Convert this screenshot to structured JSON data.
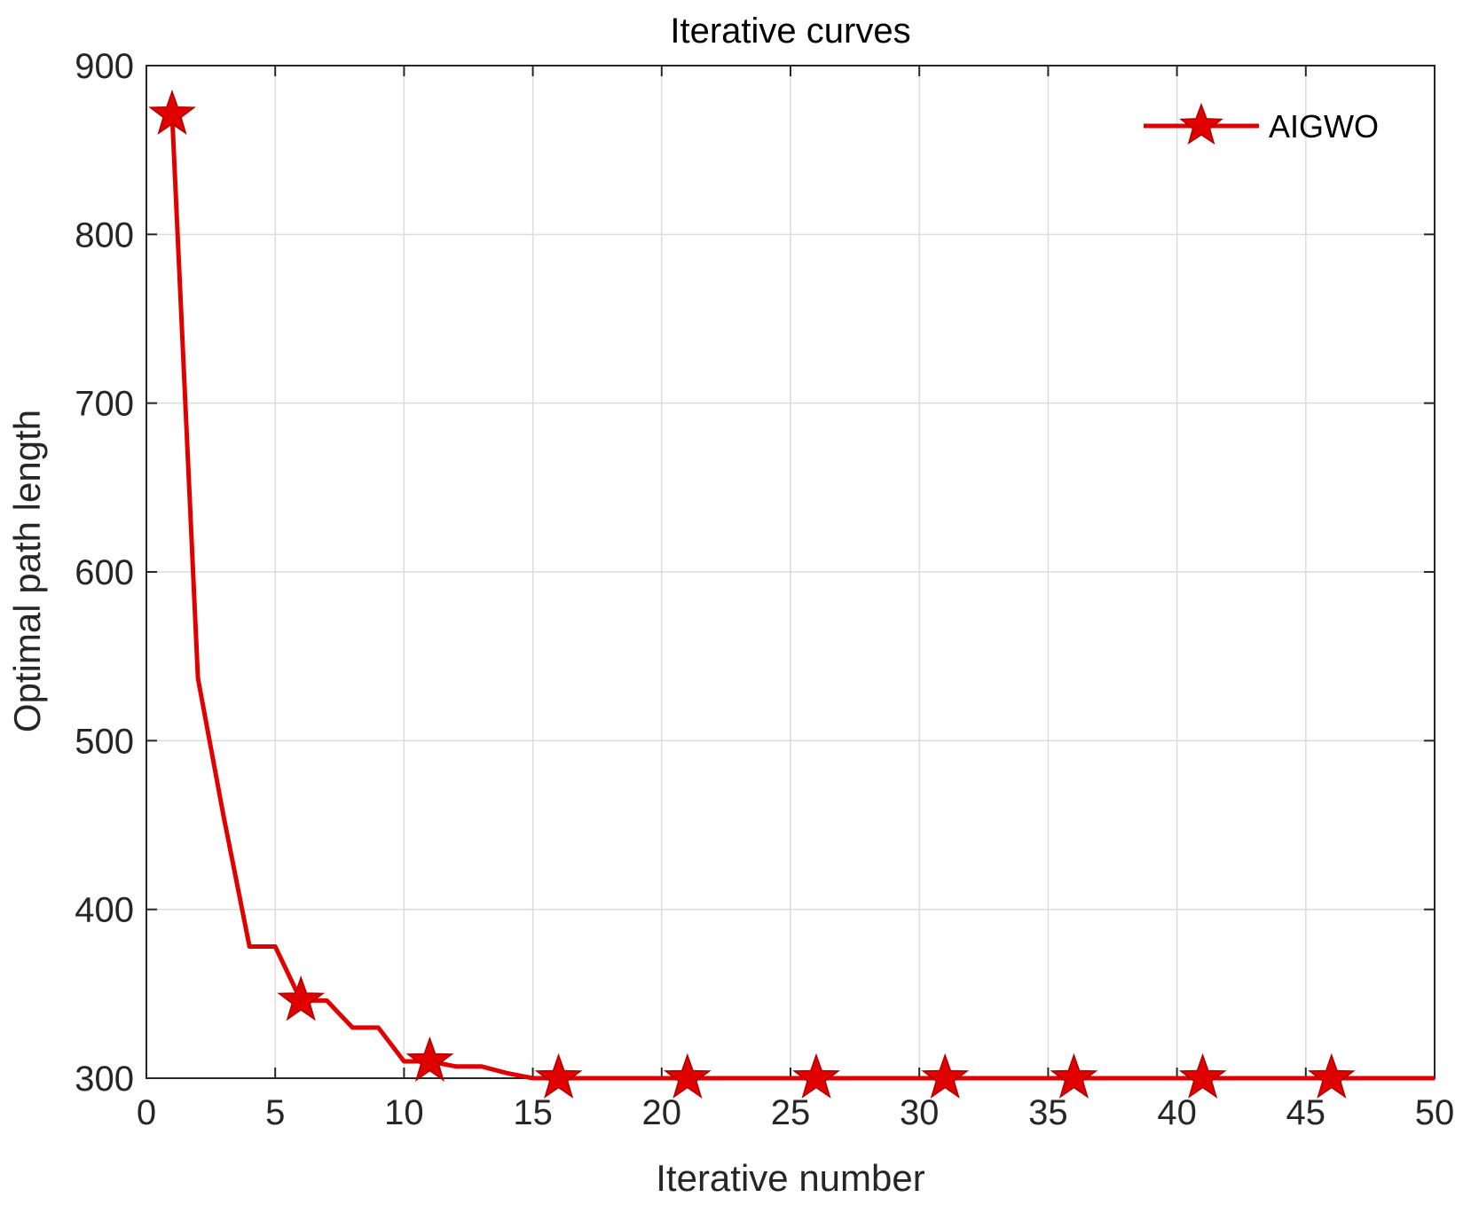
{
  "chart_data": {
    "type": "line",
    "title": "Iterative curves",
    "xlabel": "Iterative number",
    "ylabel": "Optimal path length",
    "xlim": [
      0,
      50
    ],
    "ylim": [
      300,
      900
    ],
    "xticks": [
      0,
      5,
      10,
      15,
      20,
      25,
      30,
      35,
      40,
      45,
      50
    ],
    "yticks": [
      300,
      400,
      500,
      600,
      700,
      800,
      900
    ],
    "grid": true,
    "legend_position": "top-right",
    "series": [
      {
        "name": "AIGWO",
        "color": "#e00000",
        "marker": "star",
        "x": [
          1,
          2,
          3,
          4,
          5,
          6,
          7,
          8,
          9,
          10,
          11,
          12,
          13,
          14,
          15,
          16,
          17,
          18,
          19,
          20,
          21,
          22,
          23,
          24,
          25,
          26,
          27,
          28,
          29,
          30,
          31,
          32,
          33,
          34,
          35,
          36,
          37,
          38,
          39,
          40,
          41,
          42,
          43,
          44,
          45,
          46,
          47,
          48,
          49,
          50
        ],
        "y": [
          871,
          537,
          455,
          378,
          378,
          346,
          346,
          330,
          330,
          310,
          310,
          307,
          307,
          303,
          300,
          300,
          300,
          300,
          300,
          300,
          300,
          300,
          300,
          300,
          300,
          300,
          300,
          300,
          300,
          300,
          300,
          300,
          300,
          300,
          300,
          300,
          300,
          300,
          300,
          300,
          300,
          300,
          300,
          300,
          300,
          300,
          300,
          300,
          300,
          300
        ],
        "marker_x": [
          1,
          6,
          11,
          16,
          21,
          26,
          31,
          36,
          41,
          46
        ]
      }
    ]
  }
}
